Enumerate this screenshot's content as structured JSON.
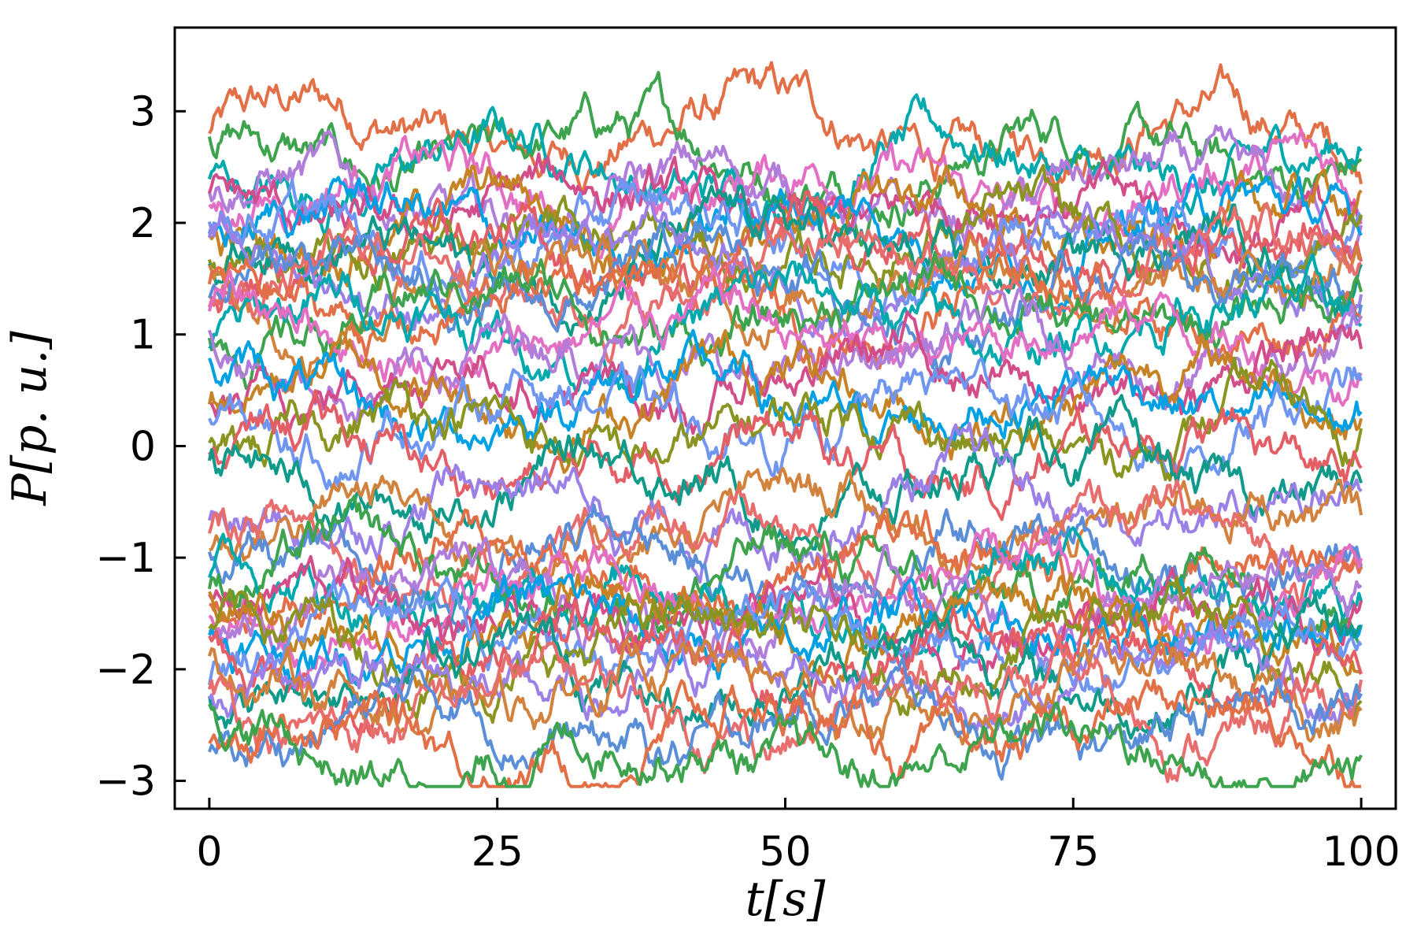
{
  "chart_data": {
    "type": "line",
    "title": "",
    "xlabel": "t[s]",
    "ylabel": "P[p. u.]",
    "xlim": [
      -3,
      103
    ],
    "ylim": [
      -3.25,
      3.75
    ],
    "xticks": [
      0,
      25,
      50,
      75,
      100
    ],
    "xtick_labels": [
      "0",
      "25",
      "50",
      "75",
      "100"
    ],
    "yticks": [
      -3,
      -2,
      -1,
      0,
      1,
      2,
      3
    ],
    "ytick_labels": [
      "−3",
      "−2",
      "−1",
      "0",
      "1",
      "2",
      "3"
    ],
    "grid": false,
    "legend": "none",
    "x_range": [
      0,
      100
    ],
    "samples_per_series": 501,
    "series_count": 50,
    "series_baselines": [
      2.8,
      2.6,
      2.5,
      2.3,
      2.2,
      2.1,
      2.0,
      1.95,
      1.9,
      1.8,
      1.75,
      1.7,
      1.6,
      1.55,
      1.5,
      1.4,
      1.3,
      1.2,
      1.1,
      1.0,
      0.8,
      0.6,
      0.5,
      0.4,
      0.3,
      0.1,
      -0.1,
      -0.3,
      -0.5,
      -0.7,
      -0.9,
      -1.0,
      -1.1,
      -1.2,
      -1.3,
      -1.4,
      -1.45,
      -1.5,
      -1.6,
      -1.65,
      -1.7,
      -1.8,
      -1.9,
      -2.0,
      -2.1,
      -2.2,
      -2.35,
      -2.5,
      -2.6,
      -2.75
    ],
    "colors": [
      "#e26f46",
      "#3da44d",
      "#00a9ad",
      "#e26fc4",
      "#b07ddb",
      "#d34d8a",
      "#c68225",
      "#00a0e5",
      "#6f96f0",
      "#8a9521",
      "#e45e66",
      "#0f9a8a",
      "#9b80e8",
      "#d2823d",
      "#e86d6d",
      "#5a8ed8"
    ]
  }
}
